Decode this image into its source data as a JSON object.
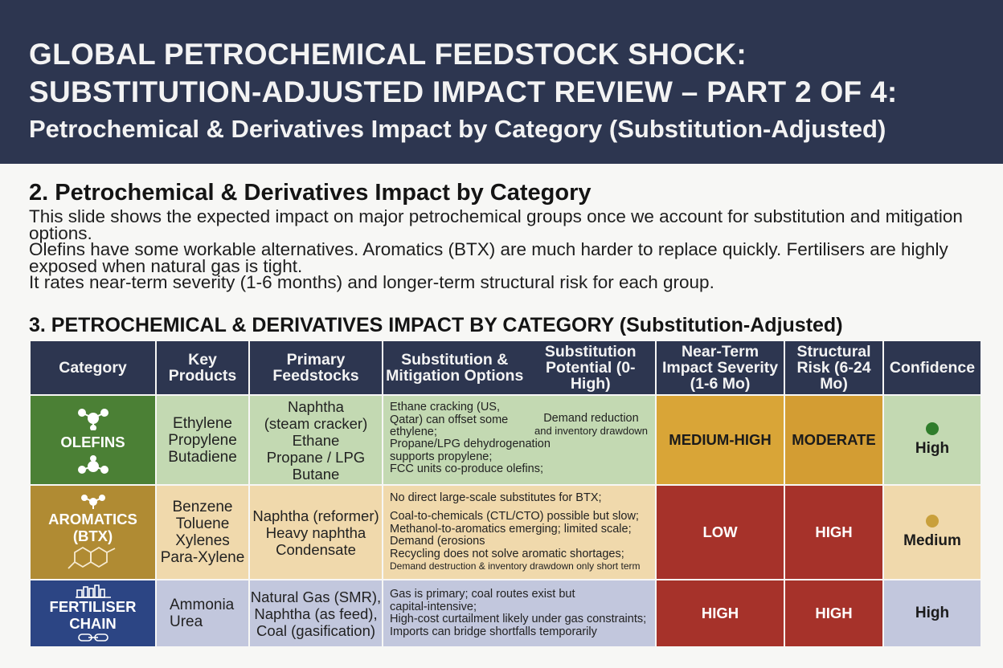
{
  "header": {
    "title_line1": "GLOBAL PETROCHEMICAL FEEDSTOCK SHOCK:",
    "title_line2": "SUBSTITUTION-ADJUSTED IMPACT REVIEW – PART 2 OF 4:",
    "subtitle": "Petrochemical & Derivatives Impact by Category (Substitution-Adjusted)"
  },
  "section": {
    "heading": "2. Petrochemical & Derivatives Impact by Category",
    "intro_line1": "This slide shows the expected impact on major petrochemical groups once we account for substitution and mitigation options.",
    "intro_line2": "Olefins have some workable alternatives. Aromatics (BTX) are much harder to replace quickly. Fertilisers are highly exposed when natural gas is tight.",
    "intro_line3": "It rates near-term severity (1-6 months) and longer-term structural risk for each group."
  },
  "table": {
    "heading": "3. PETROCHEMICAL & DERIVATIVES IMPACT BY CATEGORY (Substitution-Adjusted)",
    "columns": {
      "category": "Category",
      "key_products": "Key Products",
      "primary_feedstocks": "Primary Feedstocks",
      "substitution_options": "Substitution & Mitigation Options",
      "substitution_potential": "Substitution Potential (0-High)",
      "near_term": "Near-Term Impact Severity (1-6 Mo)",
      "structural": "Structural Risk (6-24 Mo)",
      "confidence": "Confidence"
    },
    "rows": [
      {
        "category": "OLEFINS",
        "products": [
          "Ethylene",
          "Propylene",
          "Butadiene"
        ],
        "feedstocks": [
          "Naphtha",
          "(steam cracker)",
          "Ethane",
          "Propane / LPG",
          "Butane"
        ],
        "substitution_col1": [
          "Ethane cracking (US,",
          "Qatar) can offset some",
          "ethylene;"
        ],
        "substitution_col2": [
          "Demand reduction",
          "and inventory drawdown"
        ],
        "substitution_col3": [
          "Propane/LPG dehydrogenation",
          "supports propylene;",
          "FCC units co-produce olefins;"
        ],
        "near_term": "MEDIUM-HIGH",
        "structural": "MODERATE",
        "confidence": "High",
        "dot_color": "#2f7d2b"
      },
      {
        "category_line1": "AROMATICS",
        "category_line2": "(BTX)",
        "products": [
          "Benzene",
          "Toluene",
          "Xylenes",
          "Para-Xylene"
        ],
        "feedstocks": [
          "Naphtha (reformer)",
          "Heavy naphtha",
          "Condensate"
        ],
        "substitution": [
          "No direct large-scale substitutes for BTX;",
          "Coal-to-chemicals (CTL/CTO) possible but slow;",
          "Methanol-to-aromatics emerging; limited scale;",
          "Demand (erosions",
          "Recycling does not solve aromatic shortages;",
          "Demand destruction & inventory drawdown only short term"
        ],
        "near_term": "LOW",
        "structural": "HIGH",
        "confidence": "Medium",
        "dot_color": "#c9a03c"
      },
      {
        "category_line1": "FERTILISER",
        "category_line2": "CHAIN",
        "products": [
          "Ammonia",
          "Urea"
        ],
        "feedstocks": [
          "Natural Gas (SMR),",
          "Naphtha (as feed),",
          "Coal (gasification)"
        ],
        "substitution": [
          "Gas is primary; coal routes exist but",
          "capital-intensive;",
          "High-cost curtailment likely under gas constraints;",
          "Imports can bridge shortfalls temporarily"
        ],
        "near_term": "HIGH",
        "structural": "HIGH",
        "confidence": "High"
      }
    ]
  },
  "colors": {
    "header_bg": "#2d3650",
    "olefins": "#4b8035",
    "aromatics": "#b08b33",
    "fertiliser": "#2c4584",
    "severity_red": "#a6322a",
    "severity_amber": "#d9a537"
  }
}
